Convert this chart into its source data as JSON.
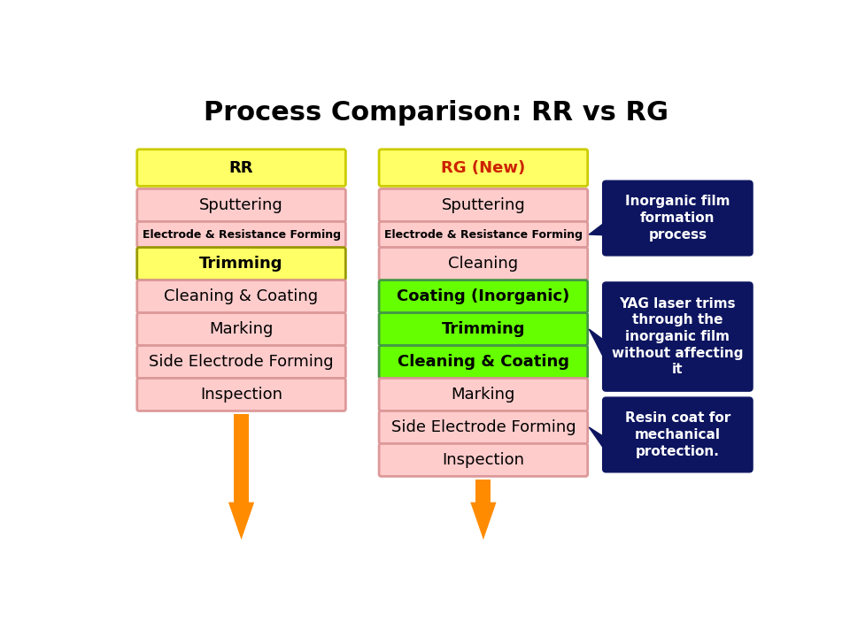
{
  "title": "Process Comparison: RR vs RG",
  "background_color": "#ffffff",
  "col_header_bg": "#ffff66",
  "col_rr_label": "RR",
  "col_rg_label": "RG (New)",
  "col_rg_label_color": "#cc2200",
  "rr_steps": [
    {
      "text": "Sputtering",
      "bg": "#ffcccc",
      "bold": false,
      "small": false
    },
    {
      "text": "Electrode & Resistance Forming",
      "bg": "#ffcccc",
      "bold": true,
      "small": true
    },
    {
      "text": "Trimming",
      "bg": "#ffff66",
      "bold": true,
      "small": false
    },
    {
      "text": "Cleaning & Coating",
      "bg": "#ffcccc",
      "bold": false,
      "small": false
    },
    {
      "text": "Marking",
      "bg": "#ffcccc",
      "bold": false,
      "small": false
    },
    {
      "text": "Side Electrode Forming",
      "bg": "#ffcccc",
      "bold": false,
      "small": false
    },
    {
      "text": "Inspection",
      "bg": "#ffcccc",
      "bold": false,
      "small": false
    }
  ],
  "rg_steps": [
    {
      "text": "Sputtering",
      "bg": "#ffcccc",
      "bold": false,
      "small": false
    },
    {
      "text": "Electrode & Resistance Forming",
      "bg": "#ffcccc",
      "bold": true,
      "small": true
    },
    {
      "text": "Cleaning",
      "bg": "#ffcccc",
      "bold": false,
      "small": false
    },
    {
      "text": "Coating (Inorganic)",
      "bg": "#66ff00",
      "bold": true,
      "small": false
    },
    {
      "text": "Trimming",
      "bg": "#66ff00",
      "bold": true,
      "small": false
    },
    {
      "text": "Cleaning & Coating",
      "bg": "#66ff00",
      "bold": true,
      "small": false
    },
    {
      "text": "Marking",
      "bg": "#ffcccc",
      "bold": false,
      "small": false
    },
    {
      "text": "Side Electrode Forming",
      "bg": "#ffcccc",
      "bold": false,
      "small": false
    },
    {
      "text": "Inspection",
      "bg": "#ffcccc",
      "bold": false,
      "small": false
    }
  ],
  "callouts": [
    {
      "text": "Inorganic film\nformation\nprocess",
      "rg_step_idx": 1,
      "tip_side": "bottom_left"
    },
    {
      "text": "YAG laser trims\nthrough the\ninorganic film\nwithout affecting\nit",
      "rg_step_idx": 4,
      "tip_side": "left"
    },
    {
      "text": "Resin coat for\nmechanical\nprotection.",
      "rg_step_idx": 7,
      "tip_side": "bottom_left"
    }
  ],
  "callout_bg": "#0d1560",
  "callout_text_color": "#ffffff",
  "arrow_color": "#ff8c00",
  "rr_big_arrow_gap": true
}
